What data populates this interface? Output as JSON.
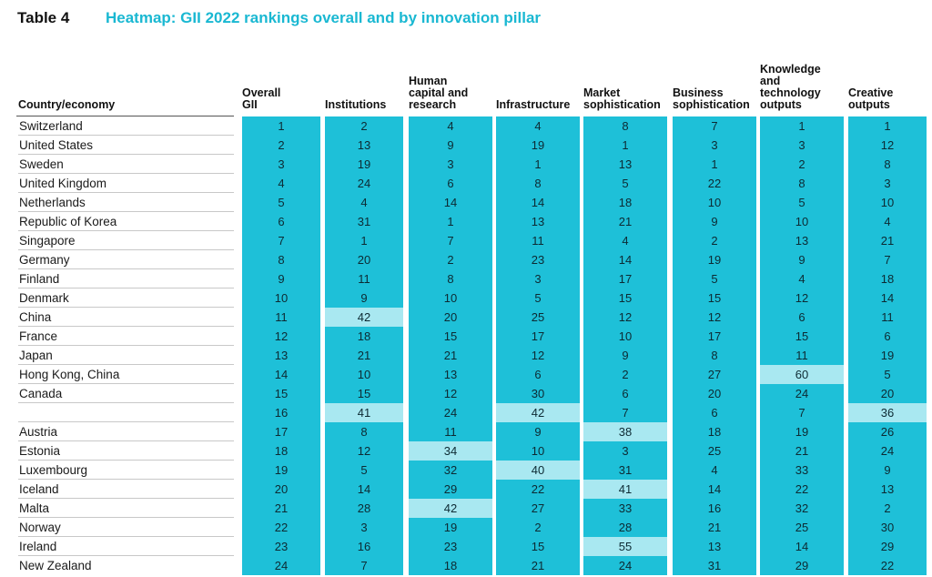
{
  "table_label": "Table 4",
  "title": "Heatmap: GII 2022 rankings overall and by innovation pillar",
  "country_header": "Country/economy",
  "columns": [
    {
      "label": "Overall\nGII"
    },
    {
      "label": "Institutions"
    },
    {
      "label": "Human\ncapital and\nresearch"
    },
    {
      "label": "Infrastructure"
    },
    {
      "label": "Market\nsophistication"
    },
    {
      "label": "Business\nsophistication"
    },
    {
      "label": "Knowledge\nand\ntechnology\noutputs"
    },
    {
      "label": "Creative\noutputs"
    }
  ],
  "highlight_color": "#a9e8f1",
  "base_color": "#1ec0d8",
  "title_color": "#1ab8d2",
  "rows": [
    {
      "country": "Switzerland",
      "values": [
        "1",
        "2",
        "4",
        "4",
        "8",
        "7",
        "1",
        "1"
      ],
      "highlight": []
    },
    {
      "country": "United States",
      "values": [
        "2",
        "13",
        "9",
        "19",
        "1",
        "3",
        "3",
        "12"
      ],
      "highlight": []
    },
    {
      "country": "Sweden",
      "values": [
        "3",
        "19",
        "3",
        "1",
        "13",
        "1",
        "2",
        "8"
      ],
      "highlight": []
    },
    {
      "country": "United Kingdom",
      "values": [
        "4",
        "24",
        "6",
        "8",
        "5",
        "22",
        "8",
        "3"
      ],
      "highlight": []
    },
    {
      "country": "Netherlands",
      "values": [
        "5",
        "4",
        "14",
        "14",
        "18",
        "10",
        "5",
        "10"
      ],
      "highlight": []
    },
    {
      "country": "Republic of Korea",
      "values": [
        "6",
        "31",
        "1",
        "13",
        "21",
        "9",
        "10",
        "4"
      ],
      "highlight": []
    },
    {
      "country": "Singapore",
      "values": [
        "7",
        "1",
        "7",
        "11",
        "4",
        "2",
        "13",
        "21"
      ],
      "highlight": []
    },
    {
      "country": "Germany",
      "values": [
        "8",
        "20",
        "2",
        "23",
        "14",
        "19",
        "9",
        "7"
      ],
      "highlight": []
    },
    {
      "country": "Finland",
      "values": [
        "9",
        "11",
        "8",
        "3",
        "17",
        "5",
        "4",
        "18"
      ],
      "highlight": []
    },
    {
      "country": "Denmark",
      "values": [
        "10",
        "9",
        "10",
        "5",
        "15",
        "15",
        "12",
        "14"
      ],
      "highlight": []
    },
    {
      "country": "China",
      "values": [
        "11",
        "42",
        "20",
        "25",
        "12",
        "12",
        "6",
        "11"
      ],
      "highlight": [
        1
      ]
    },
    {
      "country": "France",
      "values": [
        "12",
        "18",
        "15",
        "17",
        "10",
        "17",
        "15",
        "6"
      ],
      "highlight": []
    },
    {
      "country": "Japan",
      "values": [
        "13",
        "21",
        "21",
        "12",
        "9",
        "8",
        "11",
        "19"
      ],
      "highlight": []
    },
    {
      "country": "Hong Kong, China",
      "values": [
        "14",
        "10",
        "13",
        "6",
        "2",
        "27",
        "60",
        "5"
      ],
      "highlight": [
        6
      ]
    },
    {
      "country": "Canada",
      "values": [
        "15",
        "15",
        "12",
        "30",
        "6",
        "20",
        "24",
        "20"
      ],
      "highlight": []
    },
    {
      "country": "",
      "values": [
        "16",
        "41",
        "24",
        "42",
        "7",
        "6",
        "7",
        "36"
      ],
      "highlight": [
        1,
        3,
        7
      ]
    },
    {
      "country": "Austria",
      "values": [
        "17",
        "8",
        "11",
        "9",
        "38",
        "18",
        "19",
        "26"
      ],
      "highlight": [
        4
      ]
    },
    {
      "country": "Estonia",
      "values": [
        "18",
        "12",
        "34",
        "10",
        "3",
        "25",
        "21",
        "24"
      ],
      "highlight": [
        2
      ]
    },
    {
      "country": "Luxembourg",
      "values": [
        "19",
        "5",
        "32",
        "40",
        "31",
        "4",
        "33",
        "9"
      ],
      "highlight": [
        3
      ]
    },
    {
      "country": "Iceland",
      "values": [
        "20",
        "14",
        "29",
        "22",
        "41",
        "14",
        "22",
        "13"
      ],
      "highlight": [
        4
      ]
    },
    {
      "country": "Malta",
      "values": [
        "21",
        "28",
        "42",
        "27",
        "33",
        "16",
        "32",
        "2"
      ],
      "highlight": [
        2
      ]
    },
    {
      "country": "Norway",
      "values": [
        "22",
        "3",
        "19",
        "2",
        "28",
        "21",
        "25",
        "30"
      ],
      "highlight": []
    },
    {
      "country": "Ireland",
      "values": [
        "23",
        "16",
        "23",
        "15",
        "55",
        "13",
        "14",
        "29"
      ],
      "highlight": [
        4
      ]
    },
    {
      "country": "New Zealand",
      "values": [
        "24",
        "7",
        "18",
        "21",
        "24",
        "31",
        "29",
        "22"
      ],
      "highlight": []
    }
  ]
}
